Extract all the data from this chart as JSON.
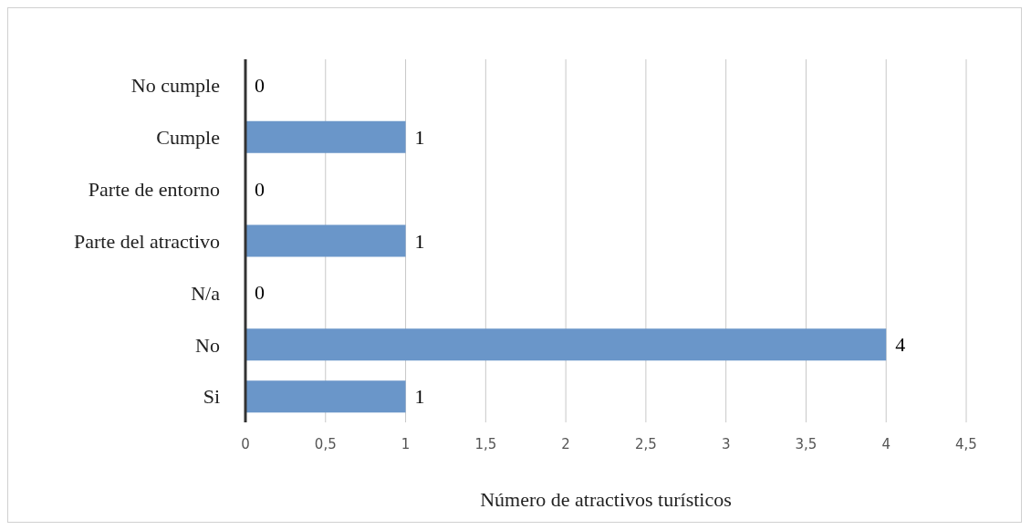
{
  "chart_data": {
    "type": "bar",
    "orientation": "horizontal",
    "categories": [
      "No cumple",
      "Cumple",
      "Parte de entorno",
      "Parte del atractivo",
      "N/a",
      "No",
      "Si"
    ],
    "values": [
      0,
      1,
      0,
      1,
      0,
      4,
      1
    ],
    "color": "#6a96c9",
    "xlabel": "Número de atractivos turísticos",
    "xlim": [
      0,
      4.5
    ],
    "xticks": [
      0,
      {
        "value": 0.5,
        "label": "0,5"
      },
      1,
      {
        "value": 1.5,
        "label": "1,5"
      },
      2,
      {
        "value": 2.5,
        "label": "2,5"
      },
      3,
      {
        "value": 3.5,
        "label": "3,5"
      },
      4,
      {
        "value": 4.5,
        "label": "4,5"
      }
    ],
    "grid": "x",
    "data_labels": true
  }
}
